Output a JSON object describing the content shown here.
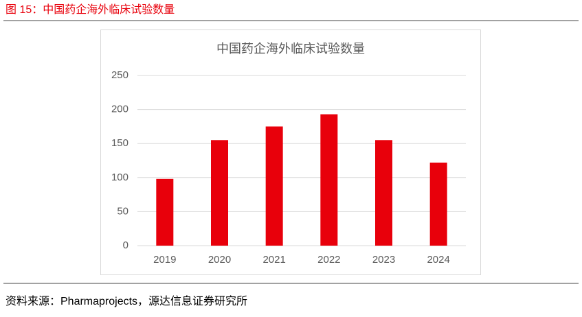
{
  "header": {
    "title": "图 15：中国药企海外临床试验数量"
  },
  "chart_data": {
    "type": "bar",
    "title": "中国药企海外临床试验数量",
    "categories": [
      "2019",
      "2020",
      "2021",
      "2022",
      "2023",
      "2024"
    ],
    "values": [
      98,
      155,
      175,
      193,
      155,
      122
    ],
    "color": "#e8000b",
    "ylim": [
      0,
      250
    ],
    "yticks": [
      0,
      50,
      100,
      150,
      200,
      250
    ],
    "grid": true
  },
  "footer": {
    "source": "资料来源：Pharmaprojects，源达信息证券研究所"
  }
}
